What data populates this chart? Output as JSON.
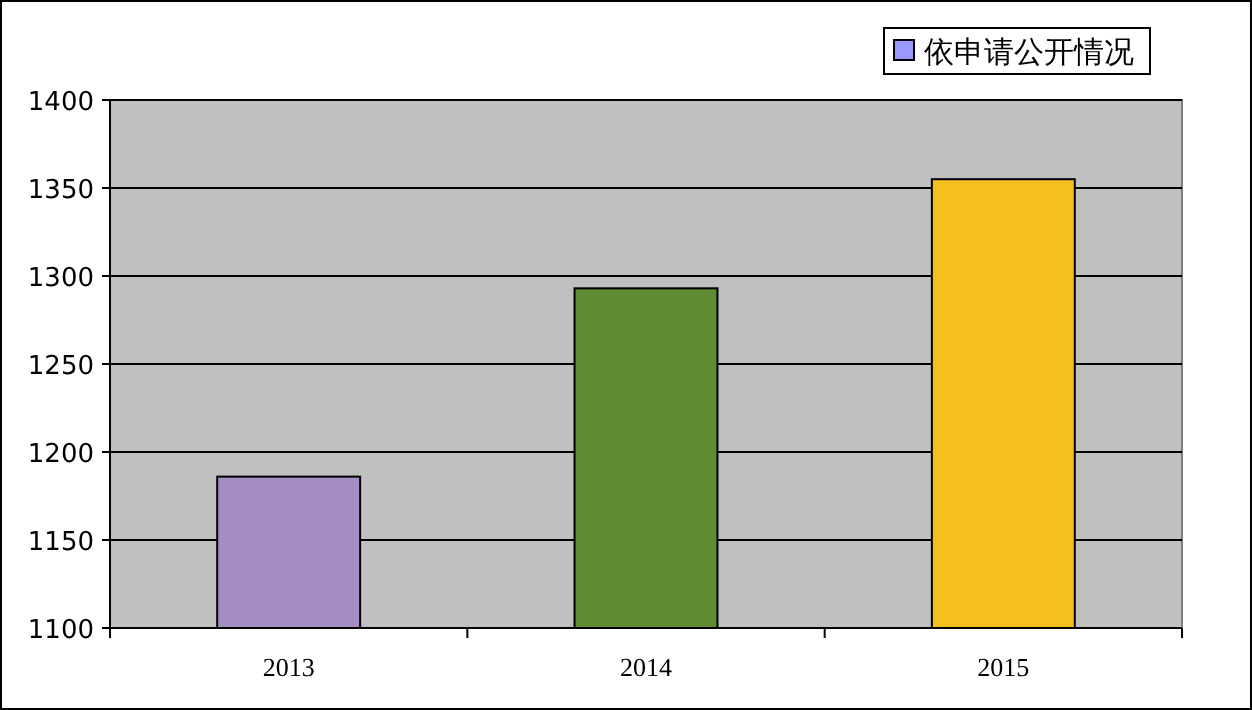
{
  "chart_data": {
    "type": "bar",
    "categories": [
      "2013",
      "2014",
      "2015"
    ],
    "series": [
      {
        "name": "依申请公开情况",
        "color": "#9999ff",
        "colors": [
          "#a68dc4",
          "#628c33",
          "#f5c01d"
        ],
        "values": [
          1186,
          1293,
          1355
        ]
      }
    ],
    "ylim": [
      1100,
      1400
    ],
    "yticks": [
      1100,
      1150,
      1200,
      1250,
      1300,
      1350,
      1400
    ],
    "grid": "y",
    "legend": "top right"
  }
}
